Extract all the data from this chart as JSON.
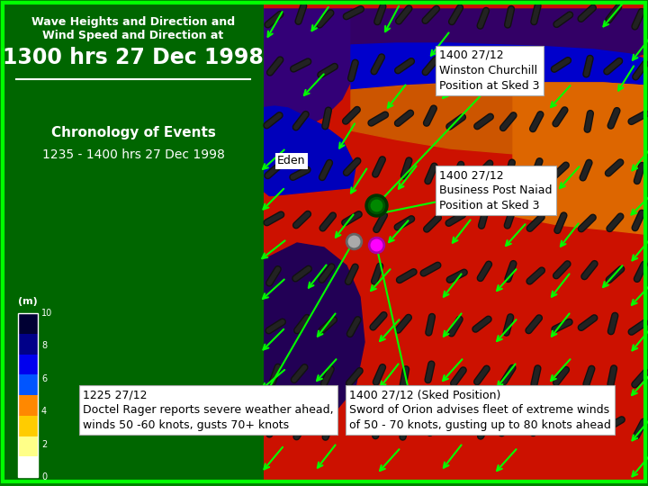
{
  "title_line1": "Wave Heights and Direction and",
  "title_line2": "Wind Speed and Direction at",
  "title_line3": "1300 hrs 27 Dec 1998",
  "subtitle1": "Chronology of Events",
  "subtitle2": "1235 - 1400 hrs 27 Dec 1998",
  "bg_color": "#008000",
  "border_color": "#00ff00",
  "annotation1_title": "1400 27/12",
  "annotation1_line1": "Winston Churchill",
  "annotation1_line2": "Position at Sked 3",
  "annotation2_title": "1400 27/12",
  "annotation2_line1": "Business Post Naiad",
  "annotation2_line2": "Position at Sked 3",
  "annotation3_title": "1225 27/12",
  "annotation3_line1": "Doctel Rager reports severe weather ahead,",
  "annotation3_line2": "winds 50 -60 knots, gusts 70+ knots",
  "annotation4_title": "1400 27/12 (Sked Position)",
  "annotation4_line1": "Sword of Orion advises fleet of extreme winds",
  "annotation4_line2": "of 50 - 70 knots, gusting up to 80 knots ahead",
  "eden_label": "Eden",
  "colorbar_label": "(m)",
  "colorbar_ticks": [
    0,
    2,
    4,
    6,
    8,
    10
  ],
  "colorbar_colors": [
    "#000033",
    "#000088",
    "#0000ee",
    "#0055ff",
    "#ff8800",
    "#ffcc00",
    "#ffff88",
    "#ffffff"
  ],
  "dot1_color": "#009900",
  "dot2_color": "#aaaaaa",
  "dot3_color": "#ff00ff"
}
